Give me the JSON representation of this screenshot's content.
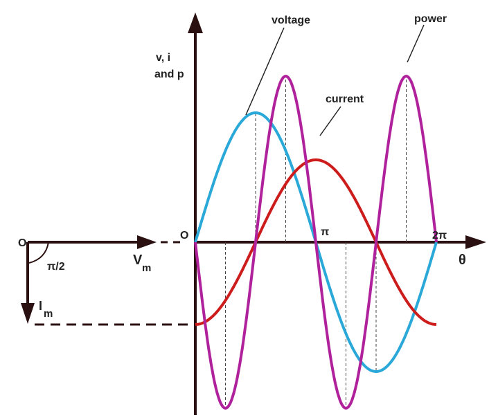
{
  "labels": {
    "voltage": "voltage",
    "power": "power",
    "current": "current",
    "axis_line1": "v, i",
    "axis_line2": "and p",
    "origin_phasor": "O",
    "origin_wave": "O",
    "pi": "π",
    "two_pi": "2π",
    "theta": "θ",
    "angle": "π/2",
    "vm_main": "V",
    "vm_sub": "m",
    "im_main": "I",
    "im_sub": "m"
  }
}
